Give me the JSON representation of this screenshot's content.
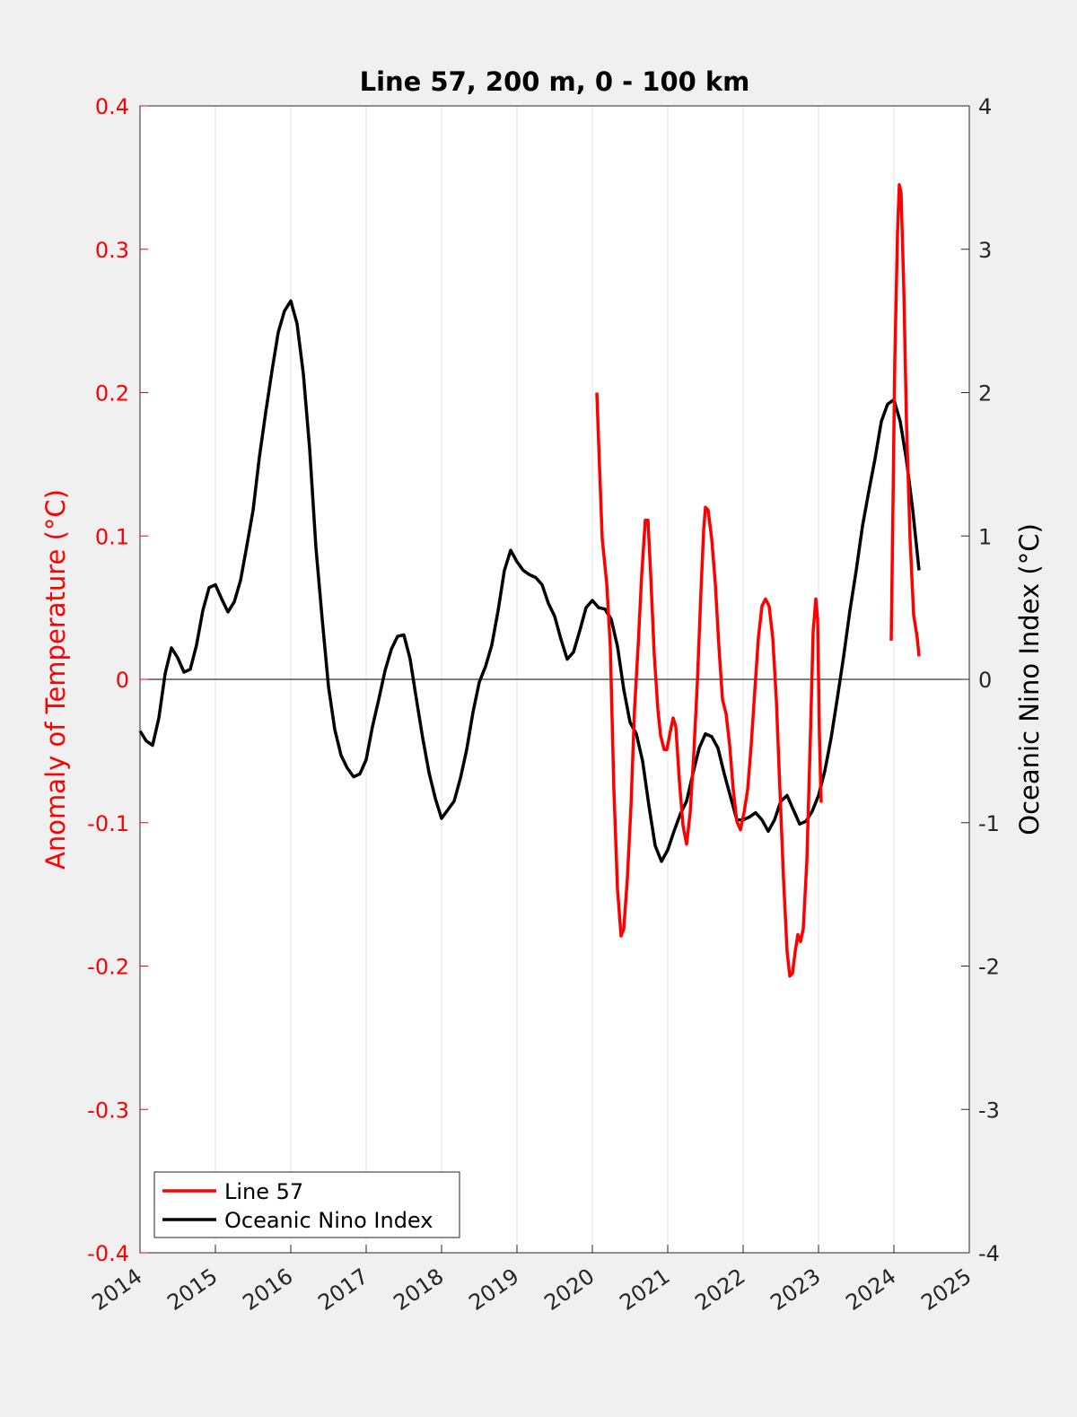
{
  "chart_data": {
    "type": "line",
    "title": "Line 57, 200 m, 0 - 100 km",
    "xlabel": "",
    "ylabel_left": "Anomaly of Temperature (°C)",
    "ylabel_right": "Oceanic Nino Index (°C)",
    "xlim": [
      2014,
      2025
    ],
    "ylim_left": [
      -0.4,
      0.4
    ],
    "ylim_right": [
      -4,
      4
    ],
    "x_ticks": [
      "2014",
      "2015",
      "2016",
      "2017",
      "2018",
      "2019",
      "2020",
      "2021",
      "2022",
      "2023",
      "2024",
      "2025"
    ],
    "y_ticks_left": [
      "-0.4",
      "-0.3",
      "-0.2",
      "-0.1",
      "0",
      "0.1",
      "0.2",
      "0.3",
      "0.4"
    ],
    "y_ticks_right": [
      "-4",
      "-3",
      "-2",
      "-1",
      "0",
      "1",
      "2",
      "3",
      "4"
    ],
    "grid": "vertical at each year",
    "legend_position": "bottom-left",
    "colors": {
      "line57": "#ff0000",
      "oni": "#000000",
      "left_axis": "#ff0000"
    },
    "series": [
      {
        "name": "Line 57",
        "axis": "left",
        "x": [
          2020.06,
          2020.095,
          2020.131,
          2020.19,
          2020.238,
          2020.286,
          2020.333,
          2020.381,
          2020.417,
          2020.464,
          2020.512,
          2020.56,
          2020.607,
          2020.655,
          2020.702,
          2020.738,
          2020.774,
          2020.821,
          2020.869,
          2020.905,
          2020.952,
          2020.988,
          2021.036,
          2021.071,
          2021.107,
          2021.155,
          2021.202,
          2021.25,
          2021.298,
          2021.345,
          2021.393,
          2021.44,
          2021.476,
          2021.5,
          2021.536,
          2021.583,
          2021.631,
          2021.679,
          2021.726,
          2021.774,
          2021.821,
          2021.869,
          2021.917,
          2021.964,
          2022.012,
          2022.06,
          2022.107,
          2022.155,
          2022.202,
          2022.25,
          2022.298,
          2022.345,
          2022.393,
          2022.44,
          2022.488,
          2022.536,
          2022.583,
          2022.619,
          2022.655,
          2022.69,
          2022.726,
          2022.762,
          2022.798,
          2022.845,
          2022.893,
          2022.929,
          2022.964,
          2022.988,
          2023.012,
          2023.036,
          null,
          2023.964,
          2023.988,
          2024.012,
          2024.048,
          2024.071,
          2024.095,
          2024.131,
          2024.167,
          2024.214,
          2024.262,
          2024.31,
          2024.333
        ],
        "values": [
          0.2,
          0.148,
          0.098,
          0.067,
          0.023,
          -0.077,
          -0.146,
          -0.179,
          -0.174,
          -0.139,
          -0.089,
          -0.021,
          0.023,
          0.073,
          0.111,
          0.111,
          0.073,
          0.017,
          -0.021,
          -0.039,
          -0.049,
          -0.049,
          -0.036,
          -0.027,
          -0.033,
          -0.071,
          -0.102,
          -0.115,
          -0.093,
          -0.052,
          -0.002,
          0.061,
          0.104,
          0.12,
          0.118,
          0.098,
          0.067,
          0.023,
          -0.014,
          -0.024,
          -0.046,
          -0.077,
          -0.099,
          -0.105,
          -0.093,
          -0.077,
          -0.046,
          -0.008,
          0.029,
          0.051,
          0.056,
          0.051,
          0.029,
          -0.014,
          -0.077,
          -0.139,
          -0.19,
          -0.207,
          -0.205,
          -0.19,
          -0.178,
          -0.183,
          -0.174,
          -0.127,
          -0.039,
          0.033,
          0.056,
          0.042,
          -0.039,
          -0.086,
          null,
          0.027,
          0.123,
          0.223,
          0.311,
          0.345,
          0.339,
          0.273,
          0.179,
          0.098,
          0.045,
          0.029,
          0.016
        ]
      },
      {
        "name": "Oceanic Nino Index",
        "axis": "right",
        "x_start": 2014.0,
        "x_step_years": 0.08333,
        "values": [
          -0.36,
          -0.43,
          -0.46,
          -0.27,
          0.04,
          0.22,
          0.15,
          0.05,
          0.07,
          0.24,
          0.48,
          0.64,
          0.66,
          0.56,
          0.47,
          0.54,
          0.69,
          0.93,
          1.18,
          1.55,
          1.86,
          2.15,
          2.42,
          2.57,
          2.64,
          2.48,
          2.13,
          1.61,
          0.92,
          0.42,
          -0.05,
          -0.35,
          -0.53,
          -0.62,
          -0.68,
          -0.66,
          -0.56,
          -0.33,
          -0.14,
          0.06,
          0.21,
          0.3,
          0.31,
          0.14,
          -0.14,
          -0.41,
          -0.65,
          -0.83,
          -0.97,
          -0.91,
          -0.85,
          -0.69,
          -0.49,
          -0.23,
          -0.02,
          0.09,
          0.24,
          0.48,
          0.76,
          0.9,
          0.82,
          0.76,
          0.73,
          0.71,
          0.66,
          0.53,
          0.44,
          0.28,
          0.14,
          0.19,
          0.34,
          0.5,
          0.55,
          0.5,
          0.49,
          0.42,
          0.23,
          -0.07,
          -0.3,
          -0.38,
          -0.57,
          -0.88,
          -1.16,
          -1.27,
          -1.19,
          -1.06,
          -0.94,
          -0.85,
          -0.66,
          -0.48,
          -0.38,
          -0.4,
          -0.48,
          -0.66,
          -0.82,
          -0.98,
          -0.98,
          -0.96,
          -0.93,
          -0.98,
          -1.06,
          -0.98,
          -0.85,
          -0.81,
          -0.91,
          -1.01,
          -0.99,
          -0.92,
          -0.81,
          -0.64,
          -0.41,
          -0.13,
          0.16,
          0.48,
          0.76,
          1.07,
          1.31,
          1.54,
          1.8,
          1.92,
          1.95,
          1.8,
          1.53,
          1.18,
          0.76
        ]
      }
    ]
  }
}
